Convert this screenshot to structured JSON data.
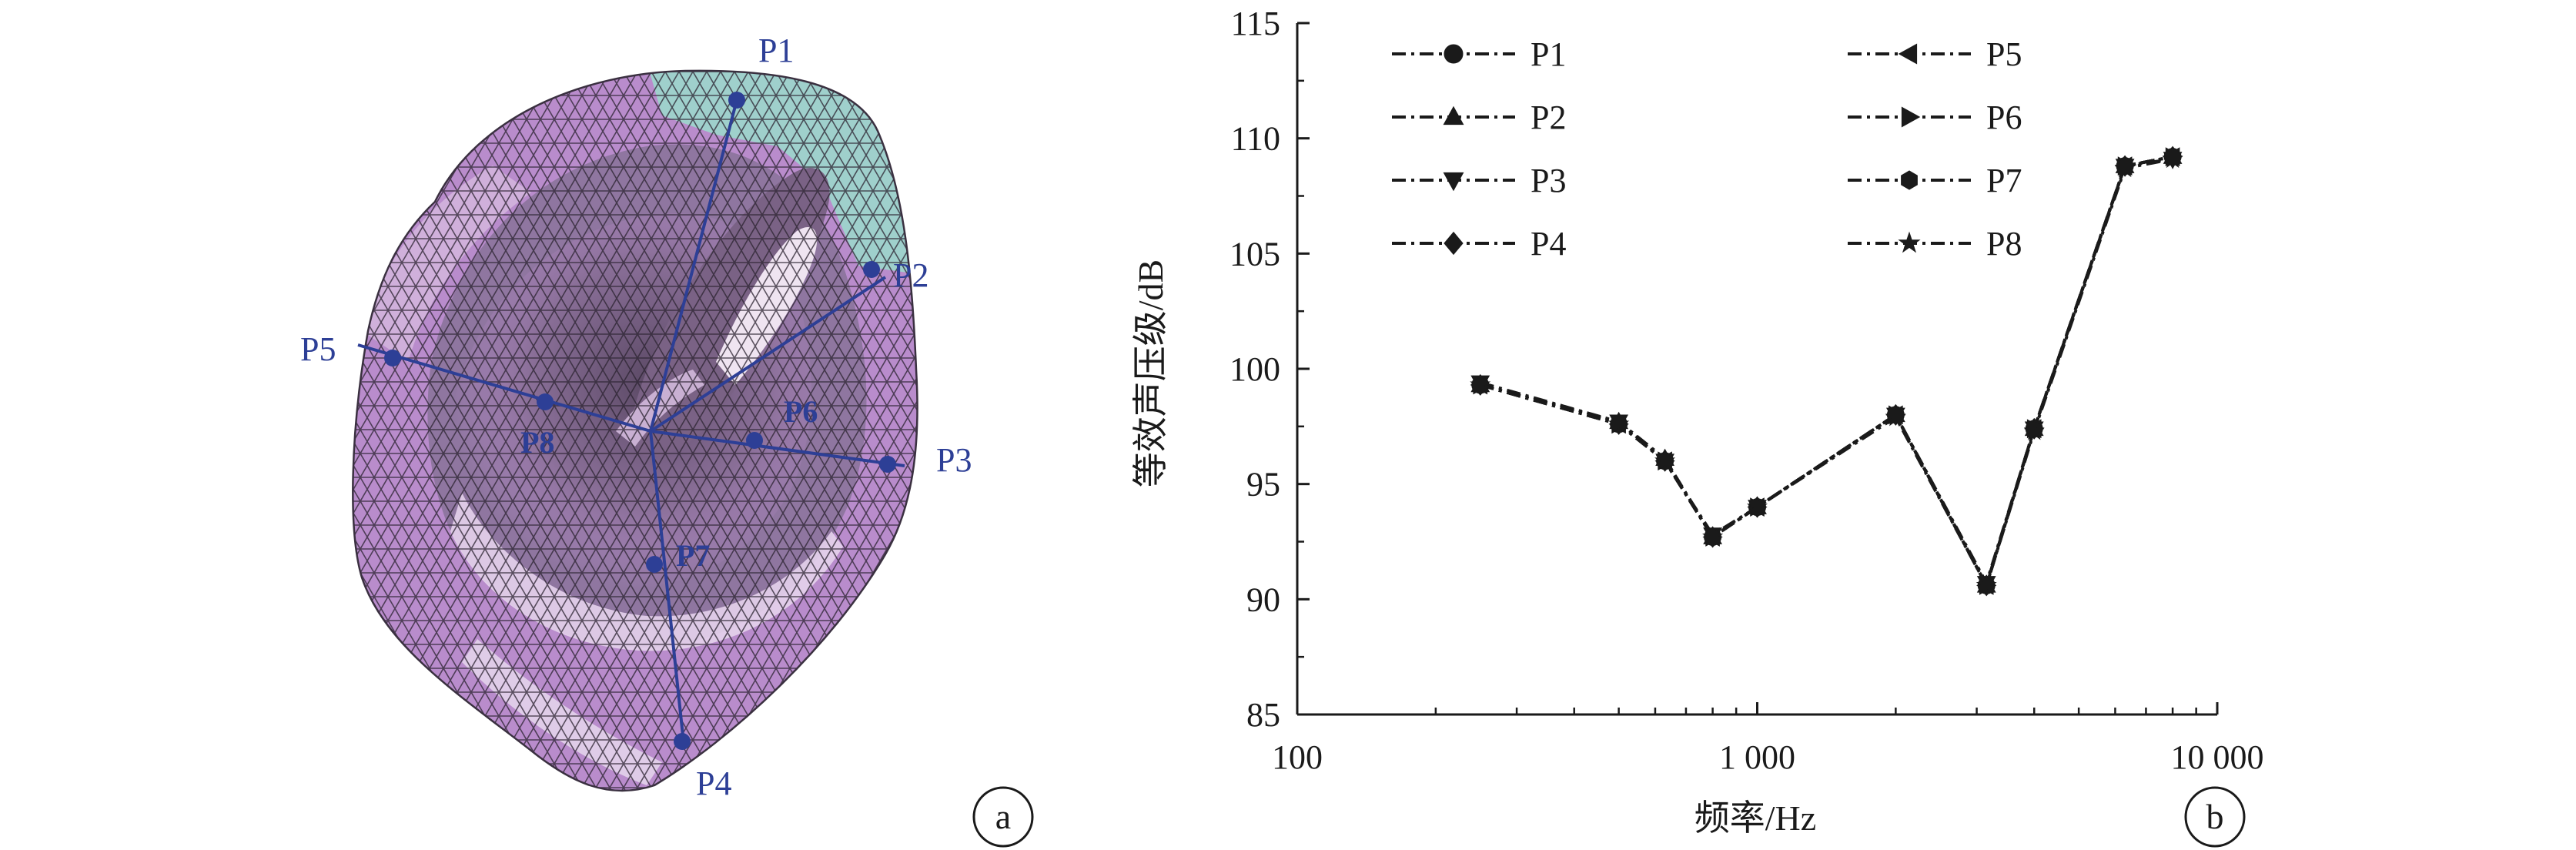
{
  "panel_a": {
    "label": "a",
    "colors": {
      "mesh_main": "#b98ccc",
      "mesh_light": "#d6b9df",
      "mesh_dark": "#6f5a78",
      "mesh_teal": "#9fd0cc",
      "probe_line": "#2d3f96"
    },
    "probes": [
      {
        "name": "P1",
        "label": "P1"
      },
      {
        "name": "P2",
        "label": "P2"
      },
      {
        "name": "P3",
        "label": "P3"
      },
      {
        "name": "P4",
        "label": "P4"
      },
      {
        "name": "P5",
        "label": "P5"
      },
      {
        "name": "P6",
        "label": "P6"
      },
      {
        "name": "P7",
        "label": "P7"
      },
      {
        "name": "P8",
        "label": "P8"
      }
    ]
  },
  "panel_b": {
    "label": "b"
  },
  "chart_data": {
    "type": "line",
    "x_scale": "log",
    "xlabel": "频率/Hz",
    "ylabel": "等效声压级/dB",
    "xlim": [
      100,
      10000
    ],
    "ylim": [
      85,
      115
    ],
    "x_ticks": [
      100,
      1000,
      10000
    ],
    "x_tick_labels": [
      "100",
      "1 000",
      "10 000"
    ],
    "y_ticks": [
      85,
      90,
      95,
      100,
      105,
      110,
      115
    ],
    "y_tick_labels": [
      "85",
      "90",
      "95",
      "100",
      "105",
      "110",
      "115"
    ],
    "grid": false,
    "legend": "top, two columns",
    "x": [
      250,
      500,
      630,
      800,
      1000,
      2000,
      3150,
      4000,
      6300,
      8000
    ],
    "series": [
      {
        "name": "P1",
        "marker": "circle",
        "values": [
          99.3,
          97.6,
          96.0,
          92.7,
          94.0,
          98.0,
          90.6,
          97.4,
          108.8,
          109.2
        ]
      },
      {
        "name": "P2",
        "marker": "triangle-up",
        "values": [
          99.3,
          97.7,
          96.1,
          92.7,
          94.0,
          98.0,
          90.6,
          97.4,
          108.8,
          109.2
        ]
      },
      {
        "name": "P3",
        "marker": "triangle-down",
        "values": [
          99.4,
          97.7,
          96.0,
          92.8,
          94.0,
          98.0,
          90.7,
          97.4,
          108.8,
          109.1
        ]
      },
      {
        "name": "P4",
        "marker": "diamond",
        "values": [
          99.3,
          97.6,
          96.0,
          92.7,
          94.0,
          98.0,
          90.6,
          97.4,
          108.8,
          109.2
        ]
      },
      {
        "name": "P5",
        "marker": "triangle-left",
        "values": [
          99.3,
          97.6,
          96.0,
          92.7,
          94.0,
          98.0,
          90.6,
          97.4,
          108.8,
          109.2
        ]
      },
      {
        "name": "P6",
        "marker": "triangle-right",
        "values": [
          99.3,
          97.6,
          96.0,
          92.7,
          94.0,
          98.0,
          90.6,
          97.4,
          108.8,
          109.2
        ]
      },
      {
        "name": "P7",
        "marker": "hexagon",
        "values": [
          99.3,
          97.6,
          96.0,
          92.7,
          94.0,
          98.0,
          90.6,
          97.4,
          108.8,
          109.2
        ]
      },
      {
        "name": "P8",
        "marker": "star",
        "values": [
          99.3,
          97.6,
          96.0,
          92.7,
          94.0,
          97.9,
          90.6,
          97.3,
          108.7,
          109.1
        ]
      }
    ]
  }
}
